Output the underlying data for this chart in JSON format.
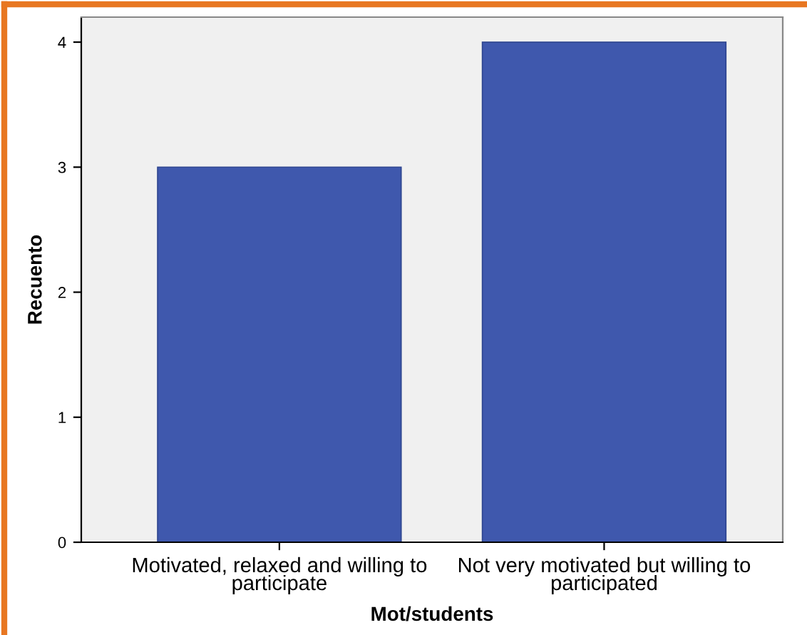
{
  "chart_data": {
    "type": "bar",
    "categories": [
      "Motivated, relaxed and willing to\nparticipate",
      "Not very motivated but willing to\nparticipated"
    ],
    "values": [
      3,
      4
    ],
    "color": "#3f58ad",
    "xlabel": "Mot/students",
    "ylabel": "Recuento",
    "ylim": [
      0,
      4.2
    ],
    "yticks": [
      0,
      1,
      2,
      3,
      4
    ],
    "grid": false,
    "legend": false
  }
}
